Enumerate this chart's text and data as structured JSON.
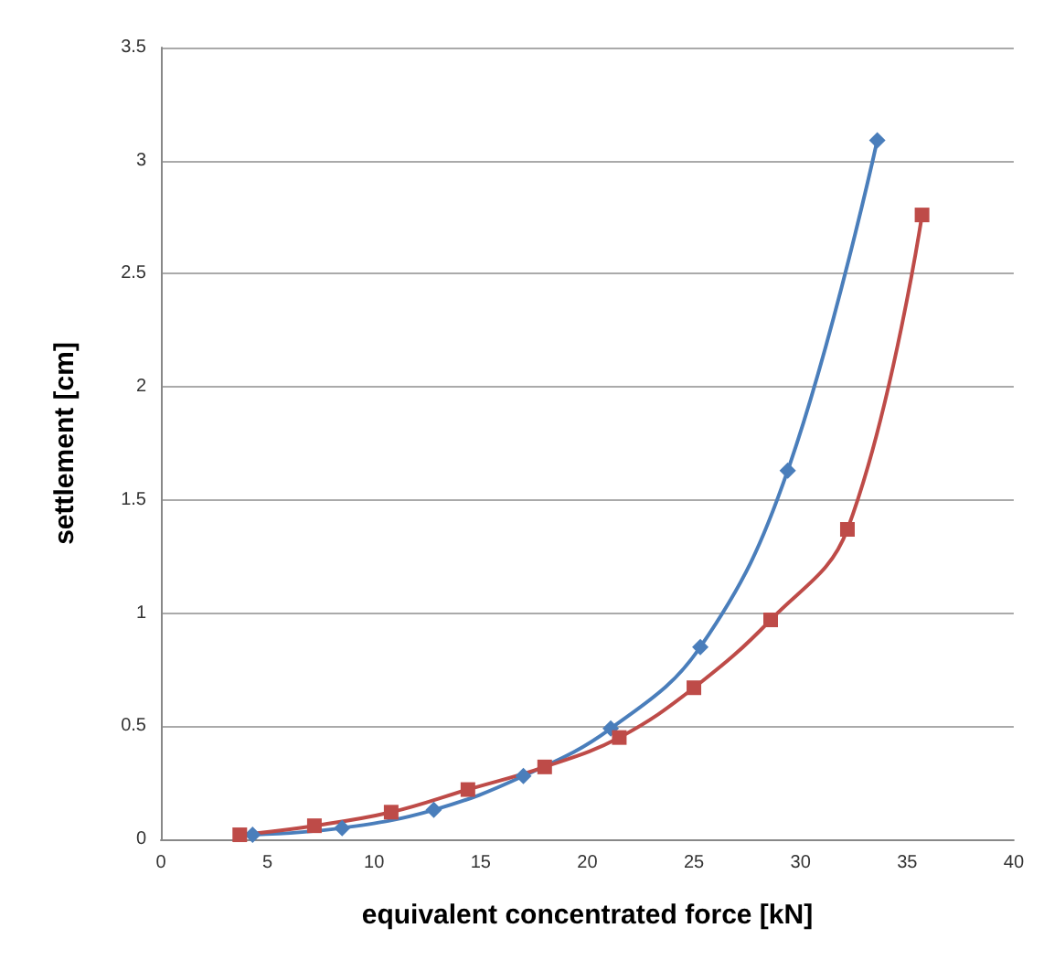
{
  "chart_data": {
    "type": "line",
    "xlabel": "equivalent concentrated force [kN]",
    "ylabel": "settlement [cm]",
    "xlim": [
      0,
      40
    ],
    "xticks": [
      0,
      5,
      10,
      15,
      20,
      25,
      30,
      35,
      40
    ],
    "ylim": [
      0,
      3.5
    ],
    "yticks": [
      0,
      0.5,
      1,
      1.5,
      2,
      2.5,
      3,
      3.5
    ],
    "grid": "y",
    "line_style": "solid",
    "series": [
      {
        "color": "#4a7ebb",
        "marker": "diamond",
        "x": [
          4.3,
          8.5,
          12.8,
          17,
          21.1,
          25.3,
          29.4,
          33.6
        ],
        "values": [
          0.02,
          0.05,
          0.13,
          0.28,
          0.49,
          0.85,
          1.63,
          3.09
        ]
      },
      {
        "color": "#be4b48",
        "marker": "square",
        "x": [
          3.7,
          7.2,
          10.8,
          14.4,
          18,
          21.5,
          25,
          28.6,
          32.2,
          35.7
        ],
        "values": [
          0.02,
          0.06,
          0.12,
          0.22,
          0.32,
          0.45,
          0.67,
          0.97,
          1.37,
          2.76
        ]
      }
    ]
  }
}
